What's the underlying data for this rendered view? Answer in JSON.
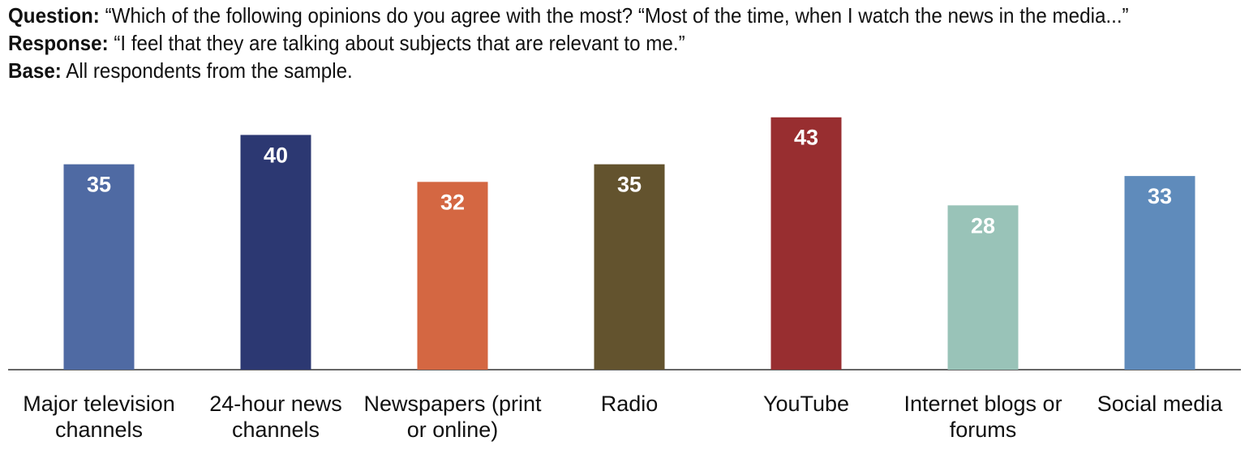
{
  "header": {
    "question_label": "Question:",
    "question_text": "“Which of the following opinions do you agree with the most? “Most of the time, when I watch the news in the media...”",
    "response_label": "Response:",
    "response_text": "“I feel that they are talking about subjects that are relevant to me.”",
    "base_label": "Base:",
    "base_text": "All respondents from the sample."
  },
  "chart_data": {
    "type": "bar",
    "categories": [
      [
        "Major television",
        "channels"
      ],
      [
        "24-hour news",
        "channels"
      ],
      [
        "Newspapers (print",
        "or online)"
      ],
      [
        "Radio"
      ],
      [
        "YouTube"
      ],
      [
        "Internet blogs or",
        "forums"
      ],
      [
        "Social media"
      ]
    ],
    "values": [
      35,
      40,
      32,
      35,
      43,
      28,
      33
    ],
    "colors": [
      "#4f6aa3",
      "#2c3872",
      "#d46742",
      "#63532e",
      "#982e30",
      "#99c3b8",
      "#5f8bbb"
    ],
    "ylim": [
      0,
      46
    ],
    "grid": false,
    "legend": "none"
  }
}
